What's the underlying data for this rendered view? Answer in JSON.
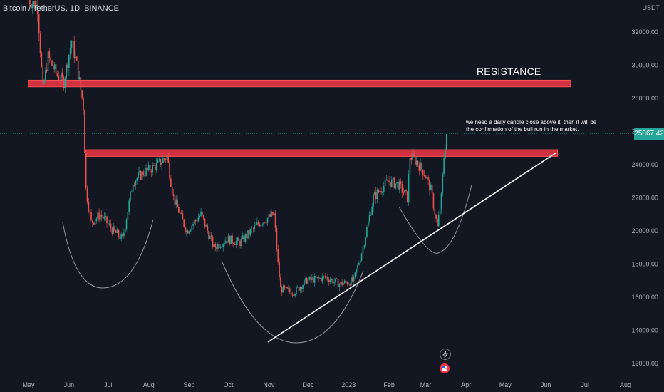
{
  "symbol": "Bitcoin / TetherUS, 1D, BINANCE",
  "currency": "USDT",
  "current_price": "25867.42",
  "resistance_label": "RESISTANCE",
  "note": "we need a daily candle close above it, then it will be the confirmation of the bull run in the market.",
  "colors": {
    "background": "#131722",
    "up": "#26a69a",
    "down": "#ef5350",
    "zone": "#f23645",
    "trendline": "#ffffff",
    "arc": "#9598a1"
  },
  "icons": [
    "flash-icon",
    "flag-us-icon"
  ],
  "chart_data": {
    "type": "candlestick",
    "y_ticks": [
      "32000.00",
      "30000.00",
      "28000.00",
      "26000.00",
      "24000.00",
      "22000.00",
      "20000.00",
      "18000.00",
      "16000.00",
      "14000.00",
      "12000.00"
    ],
    "x_ticks": [
      "May",
      "Jun",
      "Jul",
      "Aug",
      "Sep",
      "Oct",
      "Nov",
      "Dec",
      "2023",
      "Feb",
      "Mar",
      "Apr",
      "May",
      "Jun",
      "Jul",
      "Aug"
    ],
    "ylim": [
      11500,
      34000
    ],
    "grid": false,
    "zones": [
      {
        "label": "RESISTANCE",
        "from": "2022-05-01",
        "to": "2023-06-20",
        "low": 28700,
        "high": 29100
      },
      {
        "label": "",
        "from": "2022-06-14",
        "to": "2023-06-10",
        "low": 24500,
        "high": 24900
      }
    ],
    "trendline": {
      "start": {
        "date": "2022-11-01",
        "price": 13300
      },
      "end": {
        "date": "2023-06-10",
        "price": 24700
      }
    },
    "anchors": [
      [
        "2022-05-01",
        34000
      ],
      [
        "2022-05-08",
        33500
      ],
      [
        "2022-05-12",
        28500
      ],
      [
        "2022-05-16",
        30500
      ],
      [
        "2022-05-22",
        29500
      ],
      [
        "2022-05-28",
        29000
      ],
      [
        "2022-06-03",
        31500
      ],
      [
        "2022-06-07",
        30000
      ],
      [
        "2022-06-12",
        27500
      ],
      [
        "2022-06-14",
        22500
      ],
      [
        "2022-06-18",
        20500
      ],
      [
        "2022-06-25",
        21000
      ],
      [
        "2022-07-05",
        20000
      ],
      [
        "2022-07-12",
        19500
      ],
      [
        "2022-07-20",
        23000
      ],
      [
        "2022-07-28",
        23500
      ],
      [
        "2022-08-08",
        24000
      ],
      [
        "2022-08-15",
        24500
      ],
      [
        "2022-08-20",
        22000
      ],
      [
        "2022-08-30",
        20000
      ],
      [
        "2022-09-10",
        21000
      ],
      [
        "2022-09-20",
        19000
      ],
      [
        "2022-09-30",
        19500
      ],
      [
        "2022-10-10",
        19300
      ],
      [
        "2022-10-25",
        20500
      ],
      [
        "2022-11-05",
        21000
      ],
      [
        "2022-11-08",
        18000
      ],
      [
        "2022-11-10",
        16500
      ],
      [
        "2022-11-20",
        16300
      ],
      [
        "2022-11-30",
        17000
      ],
      [
        "2022-12-15",
        17200
      ],
      [
        "2022-12-25",
        16800
      ],
      [
        "2023-01-05",
        17000
      ],
      [
        "2023-01-12",
        19000
      ],
      [
        "2023-01-20",
        22000
      ],
      [
        "2023-01-31",
        23000
      ],
      [
        "2023-02-08",
        22800
      ],
      [
        "2023-02-15",
        22000
      ],
      [
        "2023-02-17",
        24500
      ],
      [
        "2023-02-22",
        24200
      ],
      [
        "2023-02-28",
        23500
      ],
      [
        "2023-03-05",
        22500
      ],
      [
        "2023-03-10",
        20200
      ],
      [
        "2023-03-13",
        22000
      ],
      [
        "2023-03-15",
        24500
      ],
      [
        "2023-03-17",
        25868
      ]
    ]
  }
}
